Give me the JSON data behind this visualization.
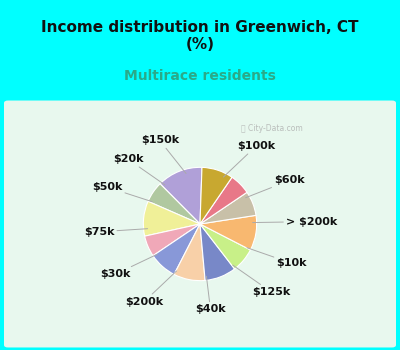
{
  "title": "Income distribution in Greenwich, CT\n(%)",
  "subtitle": "Multirace residents",
  "title_color": "#111111",
  "subtitle_color": "#2aaa88",
  "bg_cyan": "#00ffff",
  "bg_chart": "#dff5e8",
  "watermark": "ⓘ City-Data.com",
  "labels": [
    "$100k",
    "$60k",
    "> $200k",
    "$10k",
    "$125k",
    "$40k",
    "$200k",
    "$30k",
    "$75k",
    "$50k",
    "$20k",
    "$150k"
  ],
  "values": [
    13,
    6,
    10,
    6,
    8,
    9,
    9,
    7,
    10,
    7,
    6,
    9
  ],
  "colors": [
    "#b0a0d8",
    "#b0c8a0",
    "#f0f098",
    "#f0a8b8",
    "#8898d8",
    "#f8d0a8",
    "#7888c8",
    "#c8f088",
    "#f8b870",
    "#c8c0a8",
    "#e87888",
    "#c8a830"
  ],
  "label_fontsize": 8,
  "title_fontsize": 11,
  "subtitle_fontsize": 10,
  "startangle": 88
}
